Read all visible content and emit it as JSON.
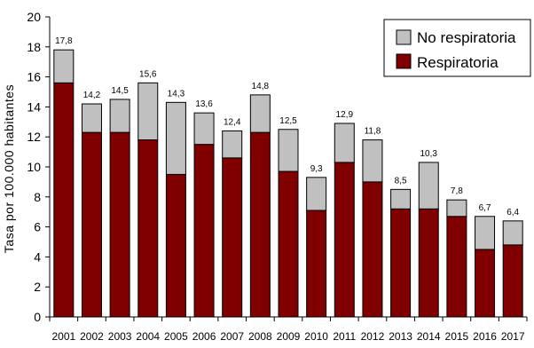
{
  "chart_data": {
    "type": "bar",
    "stacked": true,
    "ylabel": "Tasa por 100.000 habitantes",
    "ylim": [
      0,
      20
    ],
    "yticks": [
      0,
      2,
      4,
      6,
      8,
      10,
      12,
      14,
      16,
      18,
      20
    ],
    "grid": false,
    "legend_position": "top-right",
    "categories": [
      "2001",
      "2002",
      "2003",
      "2004",
      "2005",
      "2006",
      "2007",
      "2008",
      "2009",
      "2010",
      "2011",
      "2012",
      "2013",
      "2014",
      "2015",
      "2016",
      "2017"
    ],
    "series": [
      {
        "name": "Respiratoria",
        "color": "#800000",
        "values": [
          15.6,
          12.3,
          12.3,
          11.8,
          9.5,
          11.5,
          10.6,
          12.3,
          9.7,
          7.1,
          10.3,
          9.0,
          7.2,
          7.2,
          6.7,
          4.5,
          4.8
        ]
      },
      {
        "name": "No respiratoria",
        "color": "#c0c0c0",
        "values": [
          2.2,
          1.9,
          2.2,
          3.8,
          4.8,
          2.1,
          1.8,
          2.5,
          2.8,
          2.2,
          2.6,
          2.8,
          1.3,
          3.1,
          1.1,
          2.2,
          1.6
        ]
      }
    ],
    "totals": [
      "17,8",
      "14,2",
      "14,5",
      "15,6",
      "14,3",
      "13,6",
      "12,4",
      "14,8",
      "12,5",
      "9,3",
      "12,9",
      "11,8",
      "8,5",
      "10,3",
      "7,8",
      "6,7",
      "6,4"
    ]
  }
}
